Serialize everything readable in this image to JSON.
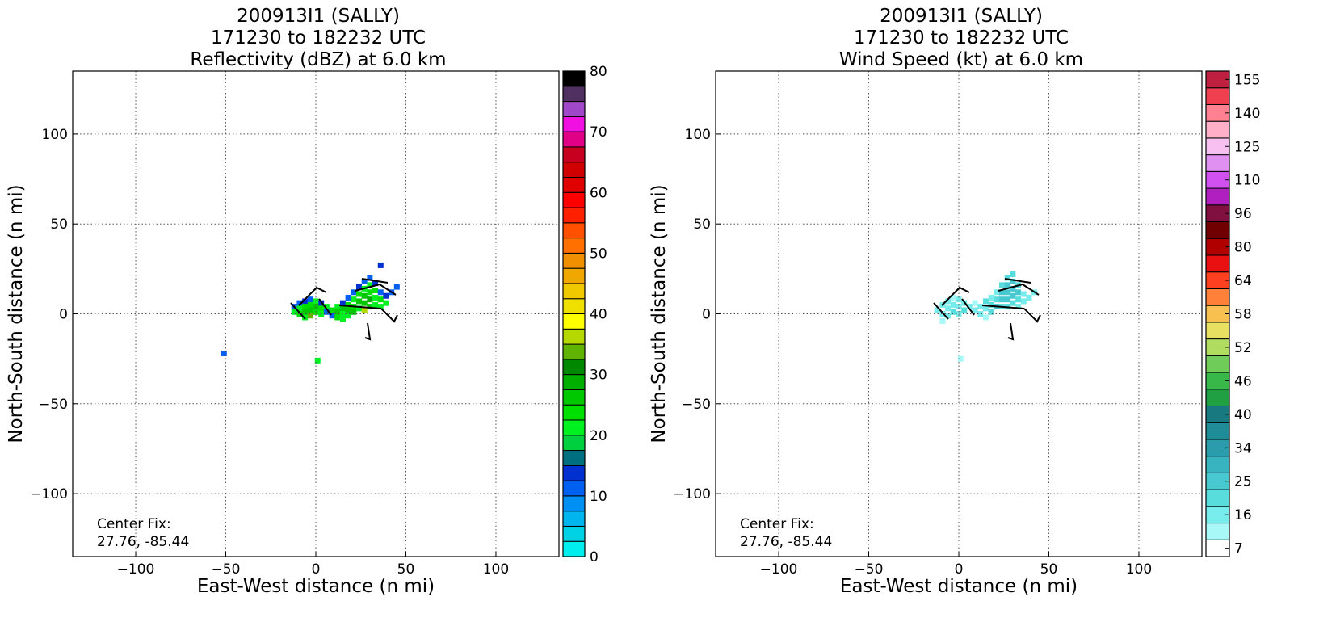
{
  "chart_data": [
    {
      "type": "heatmap",
      "title": [
        "200913I1 (SALLY)",
        "171230 to 182232 UTC",
        "Reflectivity (dBZ) at 6.0 km"
      ],
      "x_label": "East-West distance (n mi)",
      "y_label": "North-South distance (n mi)",
      "annotation": [
        "Center Fix:",
        "27.76, -85.44"
      ],
      "xlim": [
        -135,
        135
      ],
      "ylim": [
        -135,
        135
      ],
      "xticks": [
        {
          "value": -100,
          "label": "−100"
        },
        {
          "value": -50,
          "label": "−50"
        },
        0,
        50,
        100
      ],
      "yticks": [
        {
          "value": -100,
          "label": "−100"
        },
        {
          "value": -50,
          "label": "−50"
        },
        0,
        50,
        100
      ],
      "grid": true,
      "x": [
        -12,
        -12,
        -9,
        -9,
        -9,
        -6,
        -6,
        -6,
        -6,
        -3,
        -3,
        -3,
        -3,
        0,
        0,
        0,
        3,
        3,
        3,
        6,
        6,
        9,
        9,
        12,
        12,
        12,
        15,
        15,
        15,
        15,
        18,
        18,
        18,
        18,
        21,
        21,
        21,
        21,
        24,
        24,
        24,
        24,
        27,
        27,
        27,
        27,
        27,
        30,
        30,
        30,
        30,
        30,
        33,
        33,
        33,
        33,
        36,
        36,
        36,
        39,
        39,
        42,
        45,
        36,
        -51,
        1
      ],
      "y": [
        4,
        1,
        6,
        3,
        0,
        7,
        4,
        1,
        -2,
        8,
        5,
        2,
        -1,
        7,
        4,
        1,
        6,
        3,
        0,
        4,
        1,
        2,
        -1,
        4,
        1,
        -2,
        6,
        3,
        0,
        -3,
        9,
        5,
        2,
        -1,
        12,
        8,
        4,
        1,
        15,
        11,
        7,
        3,
        18,
        14,
        10,
        6,
        2,
        20,
        16,
        12,
        8,
        4,
        17,
        13,
        9,
        5,
        12,
        8,
        4,
        10,
        6,
        12,
        15,
        27,
        -22,
        -26
      ],
      "values": [
        12,
        20,
        12,
        22,
        24,
        13,
        23,
        25,
        22,
        12,
        24,
        26,
        33,
        22,
        25,
        24,
        13,
        23,
        22,
        20,
        12,
        24,
        12,
        22,
        26,
        24,
        13,
        25,
        22,
        20,
        12,
        24,
        26,
        22,
        12,
        22,
        24,
        27,
        13,
        24,
        26,
        22,
        12,
        22,
        25,
        27,
        35,
        11,
        22,
        24,
        28,
        26,
        13,
        24,
        22,
        20,
        12,
        24,
        22,
        13,
        21,
        10,
        12,
        13,
        12,
        22
      ],
      "colorbar": {
        "clim": [
          0,
          80
        ],
        "ticks": [
          0,
          10,
          20,
          30,
          40,
          50,
          60,
          70,
          80
        ],
        "colors": [
          "#00eeee",
          "#00d2e6",
          "#00b4ee",
          "#0090f4",
          "#0060f0",
          "#0030d0",
          "#007080",
          "#00d040",
          "#00f020",
          "#00e000",
          "#00c800",
          "#00b000",
          "#008800",
          "#60b400",
          "#b4d800",
          "#ffff00",
          "#f0e000",
          "#f0c800",
          "#f0a800",
          "#f09000",
          "#ff7000",
          "#ff5000",
          "#ff2000",
          "#ff0000",
          "#e00000",
          "#d00000",
          "#c80020",
          "#e00088",
          "#f010e0",
          "#a048c8",
          "#503060",
          "#000000"
        ]
      }
    },
    {
      "type": "heatmap",
      "title": [
        "200913I1 (SALLY)",
        "171230 to 182232 UTC",
        "Wind Speed (kt) at 6.0 km"
      ],
      "x_label": "East-West distance (n mi)",
      "y_label": "North-South distance (n mi)",
      "annotation": [
        "Center Fix:",
        "27.76, -85.44"
      ],
      "xlim": [
        -135,
        135
      ],
      "ylim": [
        -135,
        135
      ],
      "xticks": [
        {
          "value": -100,
          "label": "−100"
        },
        {
          "value": -50,
          "label": "−50"
        },
        0,
        50,
        100
      ],
      "yticks": [
        {
          "value": -100,
          "label": "−100"
        },
        {
          "value": -50,
          "label": "−50"
        },
        0,
        50,
        100
      ],
      "grid": true,
      "x": [
        -12,
        -9,
        -9,
        -9,
        -6,
        -6,
        -6,
        -3,
        -3,
        -3,
        0,
        0,
        0,
        3,
        3,
        6,
        9,
        9,
        12,
        12,
        15,
        15,
        15,
        18,
        18,
        18,
        21,
        21,
        21,
        24,
        24,
        24,
        24,
        27,
        27,
        27,
        27,
        27,
        30,
        30,
        30,
        30,
        30,
        33,
        33,
        33,
        33,
        36,
        36,
        39,
        42,
        1
      ],
      "y": [
        2,
        5,
        0,
        -4,
        7,
        3,
        -1,
        9,
        5,
        1,
        8,
        4,
        0,
        6,
        2,
        4,
        6,
        2,
        4,
        0,
        7,
        3,
        -2,
        9,
        5,
        1,
        12,
        8,
        4,
        16,
        12,
        8,
        4,
        20,
        16,
        12,
        8,
        4,
        22,
        18,
        14,
        10,
        6,
        16,
        12,
        8,
        4,
        11,
        7,
        9,
        12,
        -25
      ],
      "values": [
        14,
        16,
        18,
        12,
        14,
        18,
        16,
        12,
        17,
        20,
        14,
        18,
        16,
        16,
        19,
        14,
        12,
        18,
        16,
        14,
        20,
        18,
        12,
        16,
        20,
        22,
        18,
        22,
        24,
        20,
        24,
        26,
        22,
        22,
        26,
        27,
        24,
        20,
        20,
        24,
        26,
        24,
        22,
        22,
        24,
        20,
        18,
        18,
        16,
        14,
        15,
        10
      ],
      "colorbar": {
        "ticks": [
          7,
          16,
          25,
          34,
          40,
          46,
          52,
          58,
          64,
          80,
          96,
          110,
          125,
          140,
          155
        ],
        "colors": [
          "#ffffff",
          "#a8f8f8",
          "#78ecec",
          "#58dcdc",
          "#48c8d0",
          "#38b4c0",
          "#2a9cac",
          "#208c98",
          "#187a80",
          "#20a040",
          "#38b848",
          "#70cc58",
          "#b0dc60",
          "#e8e060",
          "#f8c050",
          "#ff8038",
          "#ff4020",
          "#e81010",
          "#b00000",
          "#700000",
          "#801040",
          "#b020c0",
          "#d050f0",
          "#e090f0",
          "#f8c0f0",
          "#ffb0c8",
          "#ff8090",
          "#f04050",
          "#c02040"
        ]
      }
    }
  ]
}
